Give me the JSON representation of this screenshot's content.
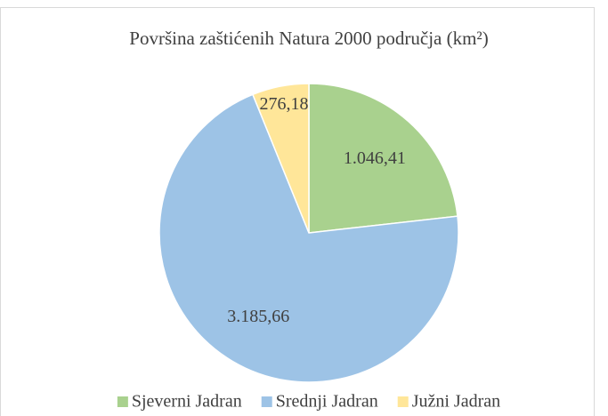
{
  "chart_data": {
    "type": "pie",
    "title": "Površina zaštićenih Natura 2000 područja (km²)",
    "categories": [
      "Sjeverni Jadran",
      "Srednji Jadran",
      "Južni Jadran"
    ],
    "values": [
      1046.41,
      3185.66,
      276.18
    ],
    "value_labels": [
      "1.046,41",
      "3.185,66",
      "276,18"
    ],
    "colors": [
      "#a9d18e",
      "#9dc3e6",
      "#ffe699"
    ],
    "legend": "bottom"
  }
}
